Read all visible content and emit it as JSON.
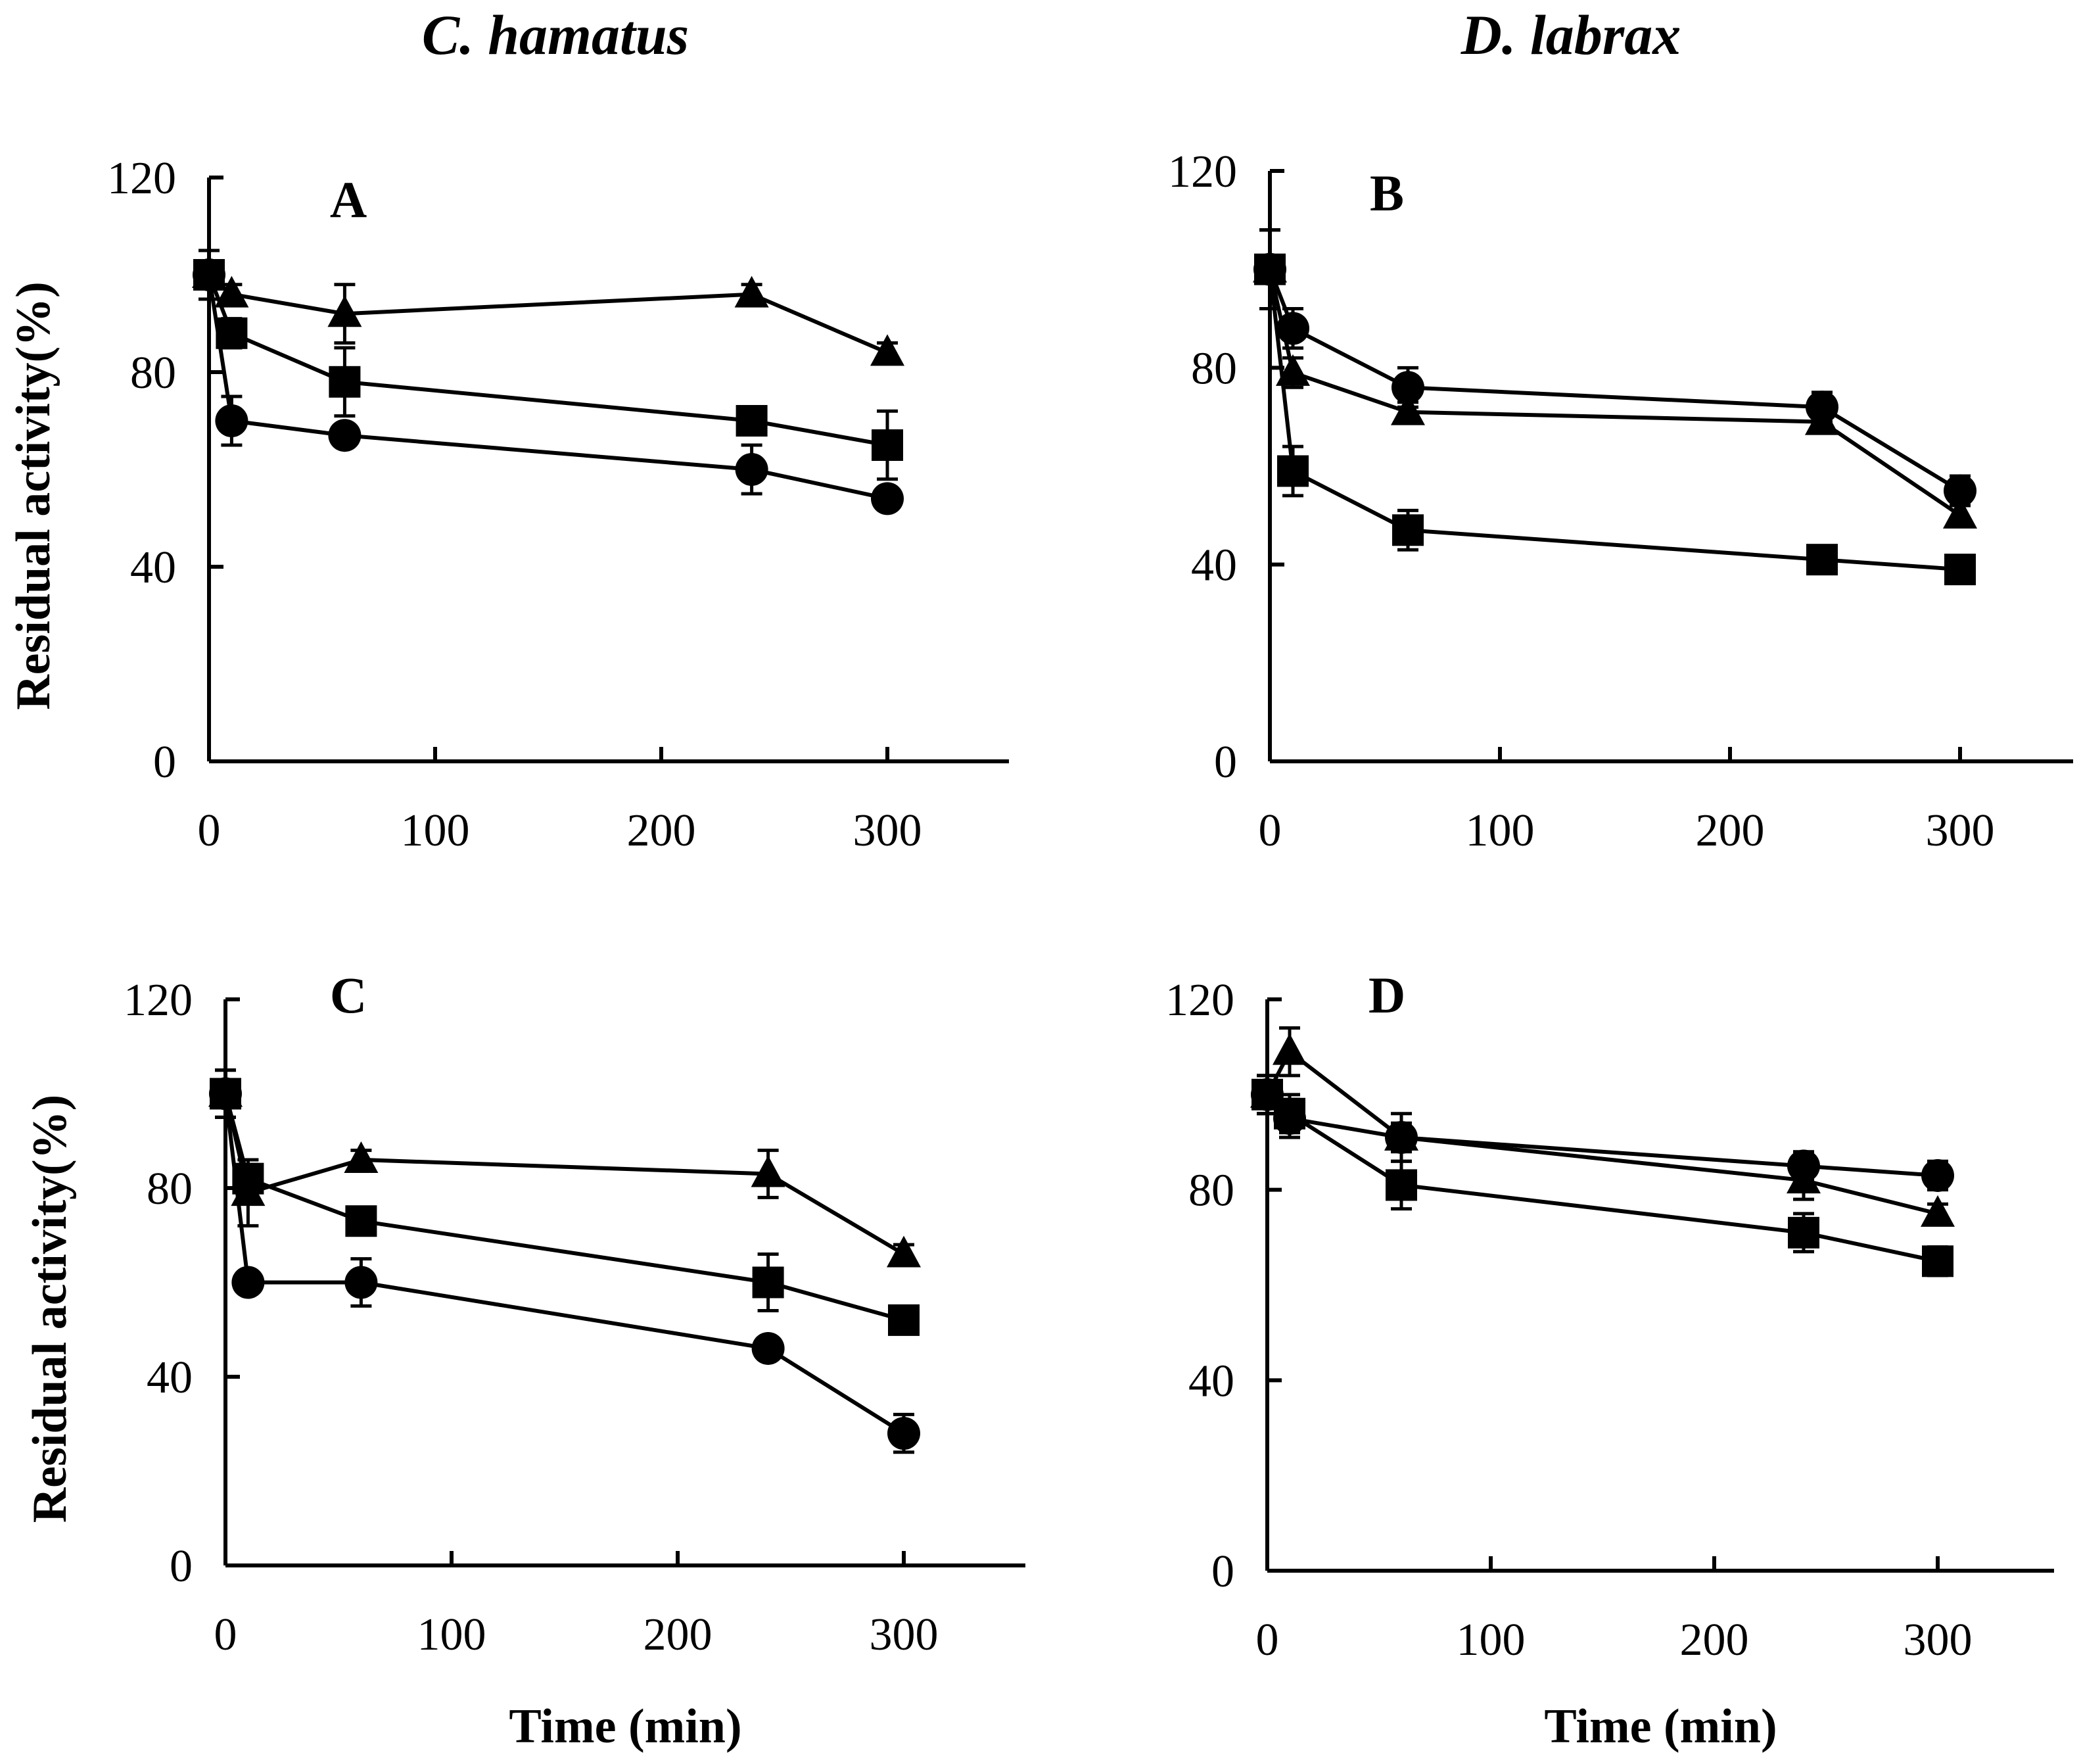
{
  "figure": {
    "column_titles": [
      "C. hamatus",
      "D. labrax"
    ]
  },
  "chart_data": [
    {
      "type": "line",
      "panel_label": "A",
      "title": "C. hamatus",
      "xlabel": "",
      "ylabel": "Residual activity(%)",
      "xlim": [
        0,
        350
      ],
      "ylim": [
        0,
        120
      ],
      "xticks": [
        0,
        100,
        200,
        300
      ],
      "yticks": [
        0,
        40,
        80,
        120
      ],
      "grid": false,
      "series": [
        {
          "name": "triangle",
          "marker": "triangle",
          "x": [
            0,
            10,
            60,
            240,
            300
          ],
          "values": [
            100,
            96,
            92,
            96,
            84
          ],
          "errors": [
            5,
            2,
            6,
            2,
            2
          ]
        },
        {
          "name": "square",
          "marker": "square",
          "x": [
            0,
            10,
            60,
            240,
            300
          ],
          "values": [
            100,
            88,
            78,
            70,
            65
          ],
          "errors": [
            5,
            3,
            7,
            2,
            7
          ]
        },
        {
          "name": "circle",
          "marker": "circle",
          "x": [
            0,
            10,
            60,
            240,
            300
          ],
          "values": [
            100,
            70,
            67,
            60,
            54
          ],
          "errors": [
            5,
            5,
            2,
            5,
            2
          ]
        }
      ]
    },
    {
      "type": "line",
      "panel_label": "B",
      "title": "D. labrax",
      "xlabel": "",
      "ylabel": "",
      "xlim": [
        0,
        350
      ],
      "ylim": [
        0,
        120
      ],
      "xticks": [
        0,
        100,
        200,
        300
      ],
      "yticks": [
        0,
        40,
        80,
        120
      ],
      "grid": false,
      "series": [
        {
          "name": "circle",
          "marker": "circle",
          "x": [
            0,
            10,
            60,
            240,
            300
          ],
          "values": [
            100,
            88,
            76,
            72,
            55
          ],
          "errors": [
            8,
            4,
            4,
            3,
            3
          ]
        },
        {
          "name": "triangle",
          "marker": "triangle",
          "x": [
            0,
            10,
            60,
            240,
            300
          ],
          "values": [
            100,
            79,
            71,
            69,
            50
          ],
          "errors": [
            8,
            3,
            2,
            2,
            2
          ]
        },
        {
          "name": "square",
          "marker": "square",
          "x": [
            0,
            10,
            60,
            240,
            300
          ],
          "values": [
            100,
            59,
            47,
            41,
            39
          ],
          "errors": [
            8,
            5,
            4,
            2,
            2
          ]
        }
      ]
    },
    {
      "type": "line",
      "panel_label": "C",
      "title": "",
      "xlabel": "Time (min)",
      "ylabel": "Residual activity(%)",
      "xlim": [
        0,
        350
      ],
      "ylim": [
        0,
        120
      ],
      "xticks": [
        0,
        100,
        200,
        300
      ],
      "yticks": [
        0,
        40,
        80,
        120
      ],
      "grid": false,
      "series": [
        {
          "name": "triangle",
          "marker": "triangle",
          "x": [
            0,
            10,
            60,
            240,
            300
          ],
          "values": [
            100,
            79,
            86,
            83,
            66
          ],
          "errors": [
            5,
            7,
            2,
            5,
            2
          ]
        },
        {
          "name": "square",
          "marker": "square",
          "x": [
            0,
            10,
            60,
            240,
            300
          ],
          "values": [
            100,
            82,
            73,
            60,
            52
          ],
          "errors": [
            5,
            3,
            2,
            6,
            2
          ]
        },
        {
          "name": "circle",
          "marker": "circle",
          "x": [
            0,
            10,
            60,
            240,
            300
          ],
          "values": [
            100,
            60,
            60,
            46,
            28
          ],
          "errors": [
            5,
            2,
            5,
            2,
            4
          ]
        }
      ]
    },
    {
      "type": "line",
      "panel_label": "D",
      "title": "",
      "xlabel": "Time (min)",
      "ylabel": "",
      "xlim": [
        0,
        350
      ],
      "ylim": [
        0,
        120
      ],
      "xticks": [
        0,
        100,
        200,
        300
      ],
      "yticks": [
        0,
        40,
        80,
        120
      ],
      "grid": false,
      "series": [
        {
          "name": "triangle",
          "marker": "triangle",
          "x": [
            0,
            10,
            60,
            240,
            300
          ],
          "values": [
            100,
            109,
            91,
            82,
            75
          ],
          "errors": [
            4,
            5,
            5,
            4,
            2
          ]
        },
        {
          "name": "circle",
          "marker": "circle",
          "x": [
            0,
            10,
            60,
            240,
            300
          ],
          "values": [
            100,
            95,
            91,
            85,
            83
          ],
          "errors": [
            4,
            4,
            3,
            3,
            3
          ]
        },
        {
          "name": "square",
          "marker": "square",
          "x": [
            0,
            10,
            60,
            240,
            300
          ],
          "values": [
            100,
            96,
            81,
            71,
            65
          ],
          "errors": [
            4,
            4,
            5,
            4,
            3
          ]
        }
      ]
    }
  ]
}
